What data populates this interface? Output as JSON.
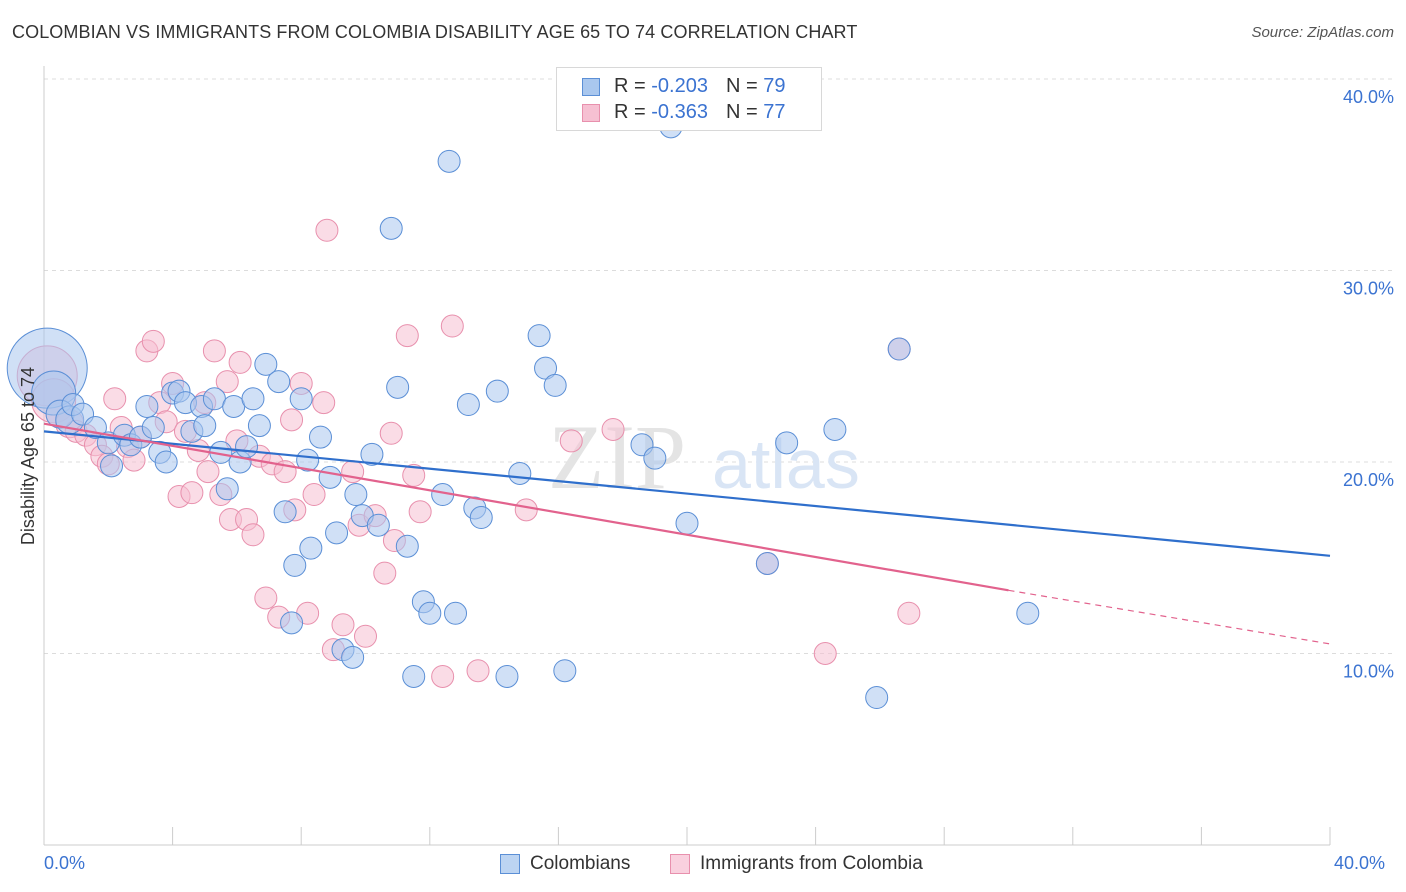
{
  "title": "COLOMBIAN VS IMMIGRANTS FROM COLOMBIA DISABILITY AGE 65 TO 74 CORRELATION CHART",
  "source": "Source: ZipAtlas.com",
  "watermark": {
    "zip": "ZIP",
    "atlas": "atlas"
  },
  "legend_top": {
    "row1": {
      "r_label": "R = ",
      "r_value": "-0.203",
      "n_label": "N = ",
      "n_value": "79"
    },
    "row2": {
      "r_label": "R = ",
      "r_value": "-0.363",
      "n_label": "N = ",
      "n_value": "77"
    }
  },
  "x_axis": {
    "min_label": "0.0%",
    "max_label": "40.0%"
  },
  "colors": {
    "blue_fill": "#a9c7ee",
    "blue_stroke": "#5b8fd6",
    "blue_line": "#2f6fcc",
    "pink_fill": "#f6c0d2",
    "pink_stroke": "#e890ad",
    "pink_line": "#e2628d",
    "tick_label": "#3b73d1"
  },
  "chart_data": {
    "type": "scatter",
    "title": "COLOMBIAN VS IMMIGRANTS FROM COLOMBIA DISABILITY AGE 65 TO 74 CORRELATION CHART",
    "xlabel": "",
    "ylabel": "Disability Age 65 to 74",
    "xlim": [
      0,
      40
    ],
    "ylim": [
      0,
      40
    ],
    "y_ticks": [
      10,
      20,
      30,
      40
    ],
    "y_tick_labels": [
      "10.0%",
      "20.0%",
      "30.0%",
      "40.0%"
    ],
    "x_tick_labels": [
      "0.0%",
      "40.0%"
    ],
    "grid": true,
    "legend_position": "top-center",
    "series": [
      {
        "name": "Colombians",
        "color": "#a9c7ee",
        "r": -0.203,
        "n": 79,
        "trend": {
          "x": [
            0,
            40
          ],
          "y": [
            21.6,
            15.1
          ]
        },
        "points": [
          [
            0.1,
            24.9
          ],
          [
            0.3,
            23.6
          ],
          [
            0.5,
            22.5
          ],
          [
            0.8,
            22.2
          ],
          [
            0.9,
            23.0
          ],
          [
            1.2,
            22.5
          ],
          [
            1.6,
            21.8
          ],
          [
            2.0,
            21.0
          ],
          [
            2.1,
            19.8
          ],
          [
            2.5,
            21.4
          ],
          [
            2.7,
            20.9
          ],
          [
            3.0,
            21.3
          ],
          [
            3.2,
            22.9
          ],
          [
            3.4,
            21.8
          ],
          [
            3.6,
            20.5
          ],
          [
            3.8,
            20.0
          ],
          [
            4.0,
            23.6
          ],
          [
            4.2,
            23.7
          ],
          [
            4.4,
            23.1
          ],
          [
            4.6,
            21.6
          ],
          [
            4.9,
            22.9
          ],
          [
            5.0,
            21.9
          ],
          [
            5.3,
            23.3
          ],
          [
            5.5,
            20.5
          ],
          [
            5.7,
            18.6
          ],
          [
            5.9,
            22.9
          ],
          [
            6.1,
            20.0
          ],
          [
            6.3,
            20.8
          ],
          [
            6.5,
            23.3
          ],
          [
            6.7,
            21.9
          ],
          [
            6.9,
            25.1
          ],
          [
            7.3,
            24.2
          ],
          [
            7.5,
            17.4
          ],
          [
            7.7,
            11.6
          ],
          [
            7.8,
            14.6
          ],
          [
            8.0,
            23.3
          ],
          [
            8.2,
            20.1
          ],
          [
            8.3,
            15.5
          ],
          [
            8.6,
            21.3
          ],
          [
            8.9,
            19.2
          ],
          [
            9.1,
            16.3
          ],
          [
            9.3,
            10.2
          ],
          [
            9.6,
            9.8
          ],
          [
            9.7,
            18.3
          ],
          [
            9.9,
            17.2
          ],
          [
            10.2,
            20.4
          ],
          [
            10.4,
            16.7
          ],
          [
            10.8,
            32.2
          ],
          [
            11.0,
            23.9
          ],
          [
            11.3,
            15.6
          ],
          [
            11.5,
            8.8
          ],
          [
            11.8,
            12.7
          ],
          [
            12.0,
            12.1
          ],
          [
            12.4,
            18.3
          ],
          [
            12.6,
            35.7
          ],
          [
            12.8,
            12.1
          ],
          [
            13.2,
            23.0
          ],
          [
            13.4,
            17.6
          ],
          [
            13.6,
            17.1
          ],
          [
            14.1,
            23.7
          ],
          [
            14.4,
            8.8
          ],
          [
            14.8,
            19.4
          ],
          [
            15.4,
            26.6
          ],
          [
            15.6,
            24.9
          ],
          [
            15.9,
            24.0
          ],
          [
            16.2,
            9.1
          ],
          [
            18.6,
            20.9
          ],
          [
            19.0,
            20.2
          ],
          [
            19.5,
            37.5
          ],
          [
            20.0,
            16.8
          ],
          [
            22.5,
            14.7
          ],
          [
            23.1,
            21.0
          ],
          [
            24.6,
            21.7
          ],
          [
            25.9,
            7.7
          ],
          [
            26.6,
            25.9
          ],
          [
            30.6,
            12.1
          ]
        ],
        "sizes": [
          40,
          22,
          14,
          14,
          11,
          11,
          11,
          11,
          11,
          11,
          11,
          11,
          11,
          11,
          11,
          11,
          11,
          11,
          11,
          11,
          11,
          11,
          11,
          11,
          11,
          11,
          11,
          11,
          11,
          11,
          11,
          11,
          11,
          11,
          11,
          11,
          11,
          11,
          11,
          11,
          11,
          11,
          11,
          11,
          11,
          11,
          11,
          11,
          11,
          11,
          11,
          11,
          11,
          11,
          11,
          11,
          11,
          11,
          11,
          11,
          11,
          11,
          11,
          11,
          11,
          11,
          11,
          11,
          11,
          11,
          11,
          11,
          11,
          11,
          11,
          11
        ]
      },
      {
        "name": "Immigrants from Colombia",
        "color": "#f6c0d2",
        "r": -0.363,
        "n": 77,
        "trend": {
          "x": [
            0,
            30
          ],
          "y": [
            22.0,
            13.3
          ]
        },
        "trend_dashed": {
          "x": [
            30,
            40
          ],
          "y": [
            13.3,
            10.5
          ]
        },
        "points": [
          [
            0.1,
            24.5
          ],
          [
            0.3,
            23.2
          ],
          [
            0.5,
            22.5
          ],
          [
            0.8,
            22.0
          ],
          [
            1.0,
            21.6
          ],
          [
            1.3,
            21.4
          ],
          [
            1.6,
            20.9
          ],
          [
            1.8,
            20.3
          ],
          [
            2.0,
            19.9
          ],
          [
            2.2,
            23.3
          ],
          [
            2.4,
            21.8
          ],
          [
            2.6,
            20.8
          ],
          [
            2.8,
            20.1
          ],
          [
            3.0,
            21.3
          ],
          [
            3.2,
            25.8
          ],
          [
            3.4,
            26.3
          ],
          [
            3.6,
            23.1
          ],
          [
            3.8,
            22.1
          ],
          [
            4.0,
            24.1
          ],
          [
            4.2,
            18.2
          ],
          [
            4.4,
            21.6
          ],
          [
            4.6,
            18.4
          ],
          [
            4.8,
            20.6
          ],
          [
            5.0,
            23.1
          ],
          [
            5.1,
            19.5
          ],
          [
            5.3,
            25.8
          ],
          [
            5.5,
            18.3
          ],
          [
            5.7,
            24.2
          ],
          [
            5.8,
            17.0
          ],
          [
            6.0,
            21.1
          ],
          [
            6.1,
            25.2
          ],
          [
            6.3,
            17.0
          ],
          [
            6.5,
            16.2
          ],
          [
            6.7,
            20.3
          ],
          [
            6.9,
            12.9
          ],
          [
            7.1,
            19.9
          ],
          [
            7.3,
            11.9
          ],
          [
            7.5,
            19.5
          ],
          [
            7.7,
            22.2
          ],
          [
            7.8,
            17.5
          ],
          [
            8.0,
            24.1
          ],
          [
            8.2,
            12.1
          ],
          [
            8.4,
            18.3
          ],
          [
            8.7,
            23.1
          ],
          [
            8.8,
            32.1
          ],
          [
            9.0,
            10.2
          ],
          [
            9.3,
            11.5
          ],
          [
            9.6,
            19.5
          ],
          [
            9.8,
            16.7
          ],
          [
            10.0,
            10.9
          ],
          [
            10.3,
            17.2
          ],
          [
            10.6,
            14.2
          ],
          [
            10.8,
            21.5
          ],
          [
            10.9,
            15.9
          ],
          [
            11.3,
            26.6
          ],
          [
            11.5,
            19.3
          ],
          [
            11.7,
            17.4
          ],
          [
            12.4,
            8.8
          ],
          [
            12.7,
            27.1
          ],
          [
            13.5,
            9.1
          ],
          [
            15.0,
            17.5
          ],
          [
            16.4,
            21.1
          ],
          [
            17.7,
            21.7
          ],
          [
            22.5,
            14.7
          ],
          [
            24.3,
            10.0
          ],
          [
            26.6,
            25.9
          ],
          [
            26.9,
            12.1
          ]
        ],
        "sizes": [
          30,
          22,
          14,
          14,
          11,
          11,
          11,
          11,
          11,
          11,
          11,
          11,
          11,
          11,
          11,
          11,
          11,
          11,
          11,
          11,
          11,
          11,
          11,
          11,
          11,
          11,
          11,
          11,
          11,
          11,
          11,
          11,
          11,
          11,
          11,
          11,
          11,
          11,
          11,
          11,
          11,
          11,
          11,
          11,
          11,
          11,
          11,
          11,
          11,
          11,
          11,
          11,
          11,
          11,
          11,
          11,
          11,
          11,
          11,
          11,
          11,
          11,
          11,
          11,
          11,
          11,
          11
        ]
      }
    ]
  },
  "bottom_legend": {
    "item1": "Colombians",
    "item2": "Immigrants from Colombia"
  }
}
